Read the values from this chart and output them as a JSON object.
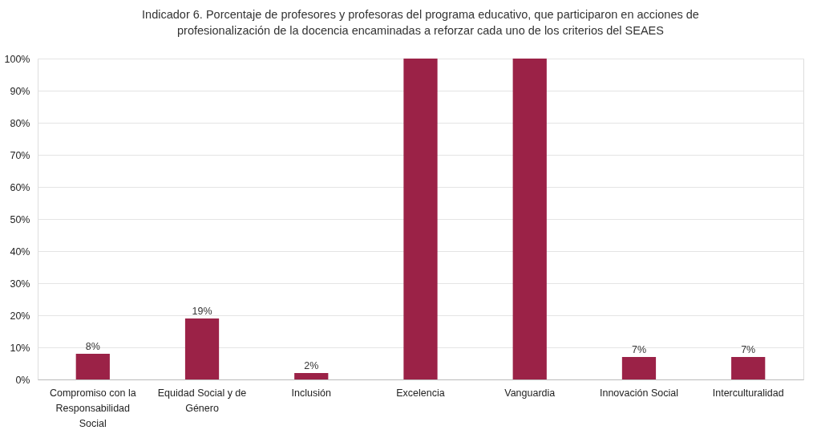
{
  "chart_data": {
    "type": "bar",
    "title": "Indicador 6.   Porcentaje de profesores y profesoras del programa educativo, que participaron en acciones de profesionalización de la docencia encaminadas a reforzar cada uno de los criterios del SEAES",
    "categories": [
      "Compromiso con la Responsabilidad Social",
      "Equidad Social y de Género",
      "Inclusión",
      "Excelencia",
      "Vanguardia",
      "Innovación Social",
      "Interculturalidad"
    ],
    "values": [
      8,
      19,
      2,
      100,
      100,
      7,
      7
    ],
    "value_labels": [
      "8%",
      "19%",
      "2%",
      null,
      null,
      "7%",
      "7%"
    ],
    "color": "#9b2247",
    "ylim": [
      0,
      100
    ],
    "yticks": [
      {
        "value": 0,
        "label": "0%"
      },
      {
        "value": 10,
        "label": "10%"
      },
      {
        "value": 20,
        "label": "20%"
      },
      {
        "value": 30,
        "label": "30%"
      },
      {
        "value": 40,
        "label": "40%"
      },
      {
        "value": 50,
        "label": "50%"
      },
      {
        "value": 60,
        "label": "60%"
      },
      {
        "value": 70,
        "label": "70%"
      },
      {
        "value": 80,
        "label": "80%"
      },
      {
        "value": 90,
        "label": "90%"
      },
      {
        "value": 100,
        "label": "100%"
      }
    ],
    "grid": "y"
  }
}
